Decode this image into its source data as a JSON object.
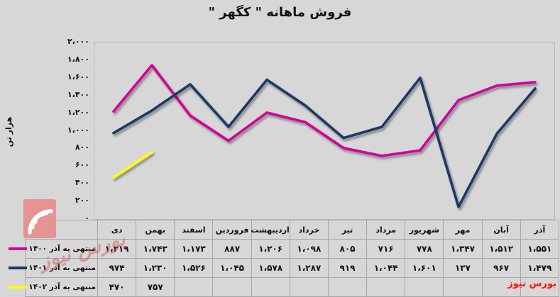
{
  "title": "فروش ماهانه \" کگهر \"",
  "y_axis": {
    "title": "هزار تن",
    "ticks": [
      "۲،۰۰۰",
      "۱،۸۰۰",
      "۱،۶۰۰",
      "۱،۴۰۰",
      "۱،۲۰۰",
      "۱،۰۰۰",
      "۸۰۰",
      "۶۰۰",
      "۴۰۰",
      "۲۰۰",
      "۰"
    ]
  },
  "table": {
    "columns": [
      "دی",
      "بهمن",
      "اسفند",
      "فروردین",
      "اردیبهشت",
      "خرداد",
      "تیر",
      "مرداد",
      "شهریور",
      "مهر",
      "آبان",
      "آذر"
    ],
    "rows": [
      {
        "legend": "منتهی به آذر ۱۴۰۰",
        "color": "#d1009b",
        "values": [
          "۱،۲۱۹",
          "۱،۷۴۳",
          "۱،۱۷۳",
          "۸۸۷",
          "۱،۲۰۶",
          "۱،۰۹۸",
          "۸۰۵",
          "۷۱۶",
          "۷۷۸",
          "۱،۳۴۷",
          "۱،۵۱۲",
          "۱،۵۵۱"
        ]
      },
      {
        "legend": "منتهی به آذر ۱۴۰۱",
        "color": "#1e3866",
        "values": [
          "۹۷۴",
          "۱،۲۳۰",
          "۱،۵۲۶",
          "۱،۰۴۵",
          "۱،۵۷۸",
          "۱،۲۸۷",
          "۹۱۹",
          "۱،۰۴۴",
          "۱،۶۰۱",
          "۱۳۷",
          "۹۶۷",
          "۱،۴۷۹"
        ]
      },
      {
        "legend": "منتهی به آذر ۱۴۰۲",
        "color": "#ffff00",
        "values": [
          "۴۷۰",
          "۷۵۷",
          "",
          "",
          "",
          "",
          "",
          "",
          "",
          "",
          "",
          ""
        ]
      }
    ]
  },
  "chart_data": {
    "type": "line",
    "title": "فروش ماهانه \" کگهر \"",
    "ylabel": "هزار تن",
    "xlabel": "",
    "categories": [
      "دی",
      "بهمن",
      "اسفند",
      "فروردین",
      "اردیبهشت",
      "خرداد",
      "تیر",
      "مرداد",
      "شهریور",
      "مهر",
      "آبان",
      "آذر"
    ],
    "series": [
      {
        "name": "منتهی به آذر ۱۴۰۰",
        "color": "#d1009b",
        "values": [
          1219,
          1743,
          1173,
          887,
          1206,
          1098,
          805,
          716,
          778,
          1347,
          1512,
          1551
        ]
      },
      {
        "name": "منتهی به آذر ۱۴۰۱",
        "color": "#1e3866",
        "values": [
          974,
          1230,
          1526,
          1045,
          1578,
          1287,
          919,
          1044,
          1601,
          137,
          967,
          1479
        ]
      },
      {
        "name": "منتهی به آذر ۱۴۰۲",
        "color": "#ffff00",
        "values": [
          470,
          757
        ]
      }
    ],
    "ylim": [
      0,
      2000
    ],
    "ytick_step": 200,
    "grid": false,
    "legend_position": "table-left"
  },
  "branding": {
    "watermark": "بورس نیوز",
    "credit": "بورس نیوز",
    "logo": "bourse-news-logo",
    "logo_color": "#e78f8d"
  },
  "colors": {
    "background": "#d7d7d7",
    "plot_border": "#b9b9b9",
    "table_border": "#a7a7a7",
    "series_1400": "#d1009b",
    "series_1401": "#1e3866",
    "series_1402": "#ffff00",
    "credit_red": "#fb0d0d"
  }
}
